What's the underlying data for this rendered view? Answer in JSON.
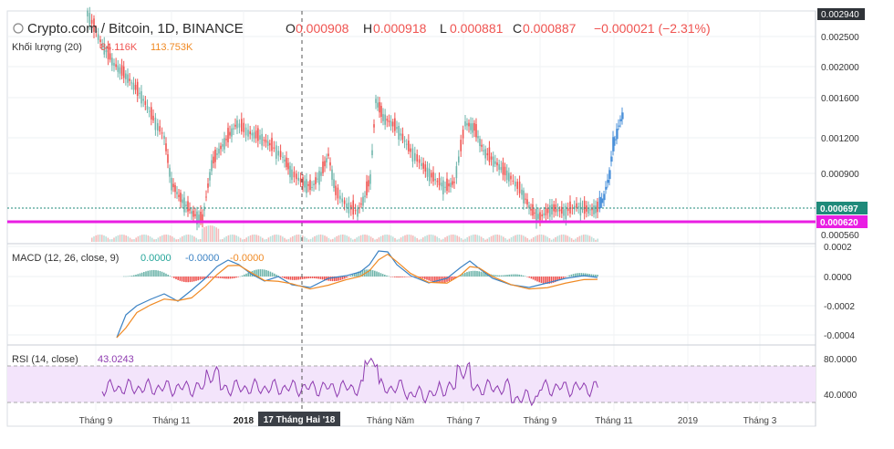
{
  "header": {
    "symbol_title": "Crypto.com / Bitcoin, 1D, BINANCE",
    "ohlc": [
      {
        "label": "O",
        "value": "0.000908"
      },
      {
        "label": "H",
        "value": "0.000918"
      },
      {
        "label": "L",
        "value": "0.000881"
      },
      {
        "label": "C",
        "value": "0.000887"
      }
    ],
    "change": "−0.000021 (−2.31%)",
    "volume_label": "Khối lượng (20)",
    "volume_value_1": "84.116K",
    "volume_value_2": "113.753K"
  },
  "price_axis": {
    "ticks": [
      "0.002940",
      "0.002500",
      "0.002000",
      "0.001600",
      "0.001200",
      "0.000900",
      "0.000560"
    ],
    "current_label": "0.000697",
    "support_label": "0.000620"
  },
  "macd": {
    "label": "MACD (12, 26, close, 9)",
    "v1": "0.0000",
    "v2": "-0.0000",
    "v3": "-0.0000",
    "ticks": [
      "0.0002",
      "0.0000",
      "-0.0002",
      "-0.0004"
    ]
  },
  "rsi": {
    "label": "RSI (14, close)",
    "value": "43.0243",
    "ticks": [
      "80.0000",
      "40.0000"
    ]
  },
  "time_axis": {
    "ticks": [
      "Tháng 9",
      "Tháng 11",
      "2018",
      "Tháng Năm",
      "Tháng 7",
      "Tháng 9",
      "Tháng 11",
      "2019",
      "Tháng 3"
    ],
    "crosshair_label": "17 Tháng Hai '18"
  },
  "colors": {
    "up": "#6fb5ab",
    "down": "#ef5350",
    "forecast": "#4a90d9",
    "support": "#e91ee3",
    "macd": "#3b82c4",
    "signal": "#f08a24",
    "rsi": "#8e3bb0",
    "rsi_band": "#f3e4fb"
  }
}
